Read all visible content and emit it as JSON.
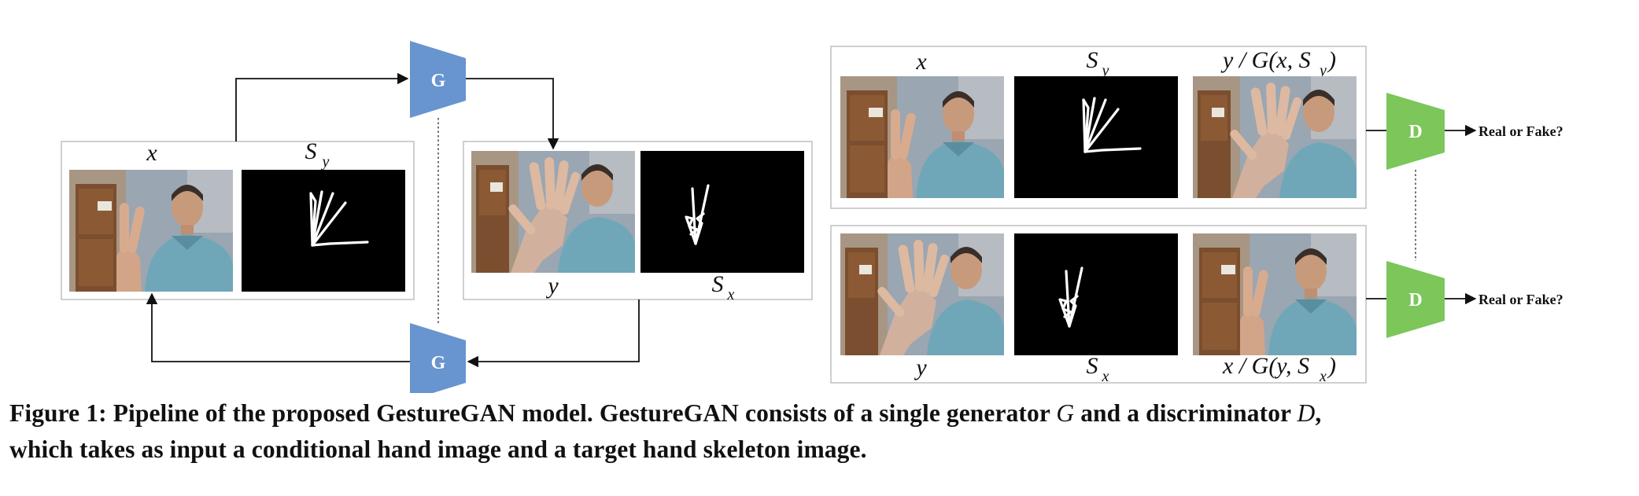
{
  "colors": {
    "generator": "#6894CF",
    "discriminator": "#7CC65A",
    "skeleton_bg": "#000000",
    "skeleton_line": "#ffffff",
    "line": "#111111"
  },
  "blocks": {
    "generator_label": "G",
    "discriminator_label": "D",
    "output_label": "Real or Fake?"
  },
  "left_panel": {
    "label_image": "x",
    "label_skeleton": "S",
    "label_skeleton_sub": "y"
  },
  "middle_panel": {
    "label_image": "y",
    "label_skeleton": "S",
    "label_skeleton_sub": "x"
  },
  "right_top": {
    "label_image": "x",
    "label_skeleton": "S",
    "label_skeleton_sub": "y",
    "label_output": "y / G(x, S",
    "label_output_sub": "y",
    "label_output_end": ")"
  },
  "right_bottom": {
    "label_image": "y",
    "label_skeleton": "S",
    "label_skeleton_sub": "x",
    "label_output": "x / G(y, S",
    "label_output_sub": "x",
    "label_output_end": ")"
  },
  "photos": {
    "two_fingers_icon": "person-peace-sign-photo",
    "open_hand_icon": "person-open-hand-photo"
  },
  "caption": {
    "prefix": "Figure 1: Pipeline of the proposed GestureGAN model. GestureGAN consists of a single generator ",
    "gen": "G",
    "mid": " and a discriminator ",
    "disc": "D",
    "suffix": ",",
    "line2": "which takes as input a conditional hand image and a target hand skeleton image."
  }
}
